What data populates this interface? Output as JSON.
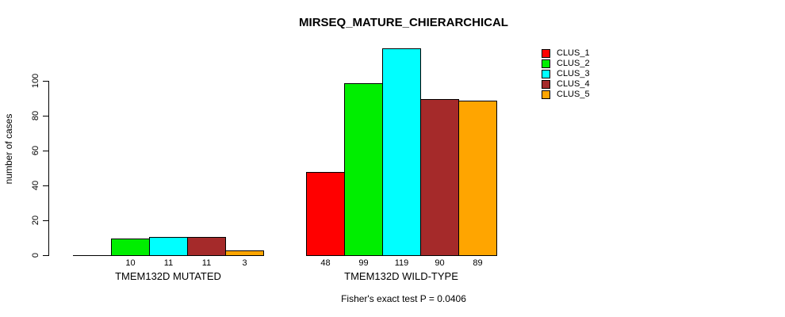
{
  "chart_data": {
    "type": "bar",
    "title": "MIRSEQ_MATURE_CHIERARCHICAL",
    "ylabel": "number of cases",
    "categories": [
      "TMEM132D MUTATED",
      "TMEM132D WILD-TYPE"
    ],
    "series": [
      {
        "name": "CLUS_1",
        "color": "#ff0000",
        "values": [
          0,
          48
        ]
      },
      {
        "name": "CLUS_2",
        "color": "#00ee00",
        "values": [
          10,
          99
        ]
      },
      {
        "name": "CLUS_3",
        "color": "#00ffff",
        "values": [
          11,
          119
        ]
      },
      {
        "name": "CLUS_4",
        "color": "#a52a2a",
        "values": [
          11,
          90
        ]
      },
      {
        "name": "CLUS_5",
        "color": "#ffa500",
        "values": [
          3,
          89
        ]
      }
    ],
    "yticks": [
      0,
      20,
      40,
      60,
      80,
      100
    ],
    "ylim": [
      0,
      125
    ],
    "grid": false,
    "legend_position": "right",
    "bar_value_labels_shown": true,
    "zero_values_unlabeled": true,
    "footnote": "Fisher's exact test P = 0.0406"
  }
}
